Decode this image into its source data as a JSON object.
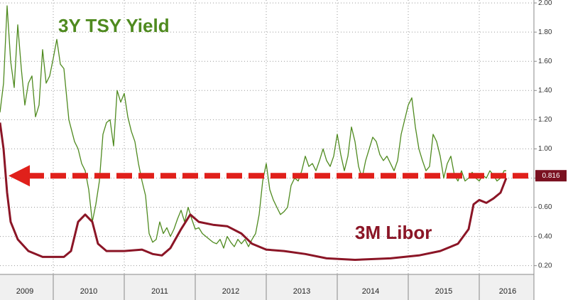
{
  "chart_data": {
    "type": "line",
    "annotations": [
      "3Y TSY Yield",
      "3M Libor"
    ],
    "xlim": [
      2009.25,
      2016.77
    ],
    "ylim": [
      0.14,
      2.02
    ],
    "yticks": [
      {
        "value": 0.2,
        "label": "0.20"
      },
      {
        "value": 0.4,
        "label": "0.40"
      },
      {
        "value": 0.6,
        "label": "0.60"
      },
      {
        "value": 0.8,
        "label": "0.80"
      },
      {
        "value": 1.0,
        "label": "1.00"
      },
      {
        "value": 1.2,
        "label": "1.20"
      },
      {
        "value": 1.4,
        "label": "1.40"
      },
      {
        "value": 1.6,
        "label": "1.60"
      },
      {
        "value": 1.8,
        "label": "1.80"
      },
      {
        "value": 2.0,
        "label": "2.00"
      }
    ],
    "xticks": [
      {
        "value": 2009.6,
        "label": "2009"
      },
      {
        "value": 2010.5,
        "label": "2010"
      },
      {
        "value": 2011.5,
        "label": "2011"
      },
      {
        "value": 2012.5,
        "label": "2012"
      },
      {
        "value": 2013.5,
        "label": "2013"
      },
      {
        "value": 2014.47,
        "label": "2014"
      },
      {
        "value": 2015.5,
        "label": "2015"
      },
      {
        "value": 2016.4,
        "label": "2016"
      }
    ],
    "x_year_boundaries": [
      2010,
      2011,
      2012,
      2013,
      2014,
      2015,
      2016
    ],
    "grid": true,
    "reference_value": 0.816,
    "reference_color": "#e0201b",
    "series": [
      {
        "name": "3Y TSY Yield",
        "color": "#4f8a1f",
        "x": [
          2009.25,
          2009.3,
          2009.35,
          2009.4,
          2009.45,
          2009.5,
          2009.55,
          2009.6,
          2009.65,
          2009.7,
          2009.75,
          2009.8,
          2009.85,
          2009.9,
          2009.95,
          2010.0,
          2010.05,
          2010.1,
          2010.15,
          2010.22,
          2010.3,
          2010.35,
          2010.4,
          2010.45,
          2010.5,
          2010.55,
          2010.6,
          2010.65,
          2010.7,
          2010.75,
          2010.8,
          2010.85,
          2010.9,
          2010.95,
          2011.0,
          2011.05,
          2011.1,
          2011.15,
          2011.2,
          2011.25,
          2011.3,
          2011.35,
          2011.4,
          2011.45,
          2011.5,
          2011.55,
          2011.6,
          2011.65,
          2011.7,
          2011.75,
          2011.8,
          2011.85,
          2011.9,
          2011.95,
          2012.0,
          2012.05,
          2012.1,
          2012.15,
          2012.2,
          2012.25,
          2012.3,
          2012.35,
          2012.4,
          2012.45,
          2012.5,
          2012.55,
          2012.6,
          2012.65,
          2012.7,
          2012.75,
          2012.8,
          2012.85,
          2012.9,
          2012.95,
          2013.0,
          2013.05,
          2013.1,
          2013.15,
          2013.2,
          2013.25,
          2013.3,
          2013.35,
          2013.4,
          2013.45,
          2013.5,
          2013.55,
          2013.6,
          2013.65,
          2013.7,
          2013.75,
          2013.8,
          2013.85,
          2013.9,
          2013.95,
          2014.0,
          2014.05,
          2014.1,
          2014.15,
          2014.2,
          2014.25,
          2014.3,
          2014.35,
          2014.4,
          2014.45,
          2014.5,
          2014.55,
          2014.6,
          2014.65,
          2014.7,
          2014.75,
          2014.8,
          2014.85,
          2014.9,
          2014.95,
          2015.0,
          2015.05,
          2015.1,
          2015.15,
          2015.2,
          2015.25,
          2015.3,
          2015.35,
          2015.4,
          2015.45,
          2015.5,
          2015.55,
          2015.6,
          2015.65,
          2015.7,
          2015.75,
          2015.8,
          2015.85,
          2015.9,
          2015.95,
          2016.0,
          2016.05,
          2016.1,
          2016.15,
          2016.2,
          2016.25,
          2016.3,
          2016.35,
          2016.38
        ],
        "values": [
          1.25,
          1.45,
          1.98,
          1.6,
          1.42,
          1.85,
          1.55,
          1.3,
          1.45,
          1.5,
          1.22,
          1.3,
          1.68,
          1.45,
          1.5,
          1.62,
          1.75,
          1.58,
          1.55,
          1.2,
          1.05,
          1.0,
          0.9,
          0.85,
          0.72,
          0.5,
          0.62,
          0.78,
          1.1,
          1.18,
          1.2,
          1.02,
          1.4,
          1.32,
          1.38,
          1.22,
          1.12,
          1.05,
          0.9,
          0.78,
          0.68,
          0.42,
          0.36,
          0.38,
          0.5,
          0.42,
          0.46,
          0.4,
          0.45,
          0.52,
          0.58,
          0.5,
          0.6,
          0.52,
          0.45,
          0.46,
          0.42,
          0.4,
          0.38,
          0.36,
          0.35,
          0.38,
          0.32,
          0.4,
          0.36,
          0.33,
          0.38,
          0.35,
          0.38,
          0.33,
          0.38,
          0.42,
          0.55,
          0.78,
          0.9,
          0.72,
          0.65,
          0.6,
          0.55,
          0.57,
          0.6,
          0.75,
          0.8,
          0.78,
          0.85,
          0.95,
          0.88,
          0.9,
          0.85,
          0.92,
          1.0,
          0.92,
          0.88,
          0.95,
          1.1,
          0.96,
          0.85,
          0.95,
          1.15,
          1.05,
          0.88,
          0.8,
          0.92,
          1.0,
          1.08,
          1.05,
          0.96,
          0.92,
          0.95,
          0.9,
          0.85,
          0.92,
          1.1,
          1.2,
          1.3,
          1.35,
          1.15,
          1.0,
          0.92,
          0.85,
          0.88,
          1.1,
          1.05,
          0.95,
          0.8,
          0.9,
          0.95,
          0.82,
          0.78,
          0.85,
          0.78,
          0.8,
          0.84,
          0.8,
          0.78,
          0.82,
          0.8,
          0.85,
          0.82,
          0.78,
          0.8,
          0.85,
          0.85
        ]
      },
      {
        "name": "3M Libor",
        "color": "#8b1526",
        "x": [
          2009.25,
          2009.3,
          2009.35,
          2009.4,
          2009.5,
          2009.65,
          2009.85,
          2010.15,
          2010.25,
          2010.35,
          2010.45,
          2010.55,
          2010.63,
          2010.75,
          2011.0,
          2011.25,
          2011.4,
          2011.53,
          2011.65,
          2011.8,
          2011.93,
          2012.05,
          2012.25,
          2012.45,
          2012.65,
          2012.8,
          2013.0,
          2013.25,
          2013.55,
          2013.85,
          2014.25,
          2014.75,
          2015.15,
          2015.45,
          2015.7,
          2015.85,
          2015.92,
          2016.0,
          2016.1,
          2016.2,
          2016.3,
          2016.38
        ],
        "values": [
          1.18,
          1.0,
          0.7,
          0.5,
          0.38,
          0.3,
          0.26,
          0.26,
          0.3,
          0.5,
          0.55,
          0.5,
          0.35,
          0.3,
          0.3,
          0.31,
          0.28,
          0.27,
          0.32,
          0.45,
          0.55,
          0.5,
          0.48,
          0.47,
          0.42,
          0.35,
          0.31,
          0.3,
          0.28,
          0.25,
          0.24,
          0.25,
          0.27,
          0.3,
          0.35,
          0.45,
          0.62,
          0.65,
          0.63,
          0.66,
          0.7,
          0.8
        ]
      }
    ]
  }
}
